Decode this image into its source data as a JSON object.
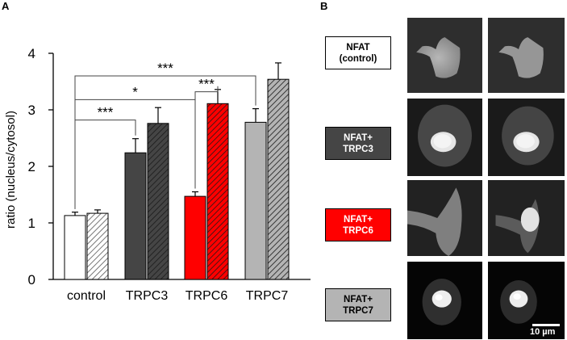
{
  "panel_a": {
    "letter": "A"
  },
  "panel_b": {
    "letter": "B",
    "conditions": [
      {
        "label": "NFAT\n(control)",
        "bg": "#ffffff",
        "fg": "#000000"
      },
      {
        "label": "NFAT+\nTRPC3",
        "bg": "#454545",
        "fg": "#ffffff"
      },
      {
        "label": "NFAT+\nTRPC6",
        "bg": "#ff0000",
        "fg": "#ffffff"
      },
      {
        "label": "NFAT+\nTRPC7",
        "bg": "#b4b4b4",
        "fg": "#000000"
      }
    ],
    "scale_bar_label": "10 µm"
  },
  "chart_data": {
    "type": "bar",
    "title": "",
    "xlabel": "",
    "ylabel": "ratio (nucleus/cytosol)",
    "ylim": [
      0,
      4
    ],
    "yticks": [
      0,
      1,
      2,
      3,
      4
    ],
    "grid": false,
    "categories": [
      "control",
      "TRPC3",
      "TRPC6",
      "TRPC7"
    ],
    "colors": [
      "#ffffff",
      "#454545",
      "#ff0000",
      "#b4b4b4"
    ],
    "series": [
      {
        "pattern": "solid",
        "values": [
          1.13,
          2.24,
          1.47,
          2.78
        ],
        "errors": [
          0.06,
          0.25,
          0.08,
          0.24
        ]
      },
      {
        "pattern": "hatched",
        "values": [
          1.17,
          2.76,
          3.11,
          3.54
        ],
        "errors": [
          0.06,
          0.28,
          0.25,
          0.29
        ]
      }
    ],
    "significance": [
      {
        "from": [
          0,
          0
        ],
        "to": [
          1,
          0
        ],
        "y": 2.82,
        "label": "***"
      },
      {
        "from": [
          0,
          0
        ],
        "to": [
          2,
          0
        ],
        "y": 3.18,
        "label": "*"
      },
      {
        "from": [
          2,
          0
        ],
        "to": [
          2,
          1
        ],
        "y": 3.32,
        "label": "***"
      },
      {
        "from": [
          0,
          0
        ],
        "to": [
          3,
          0
        ],
        "y": 3.6,
        "label": "***"
      }
    ]
  }
}
